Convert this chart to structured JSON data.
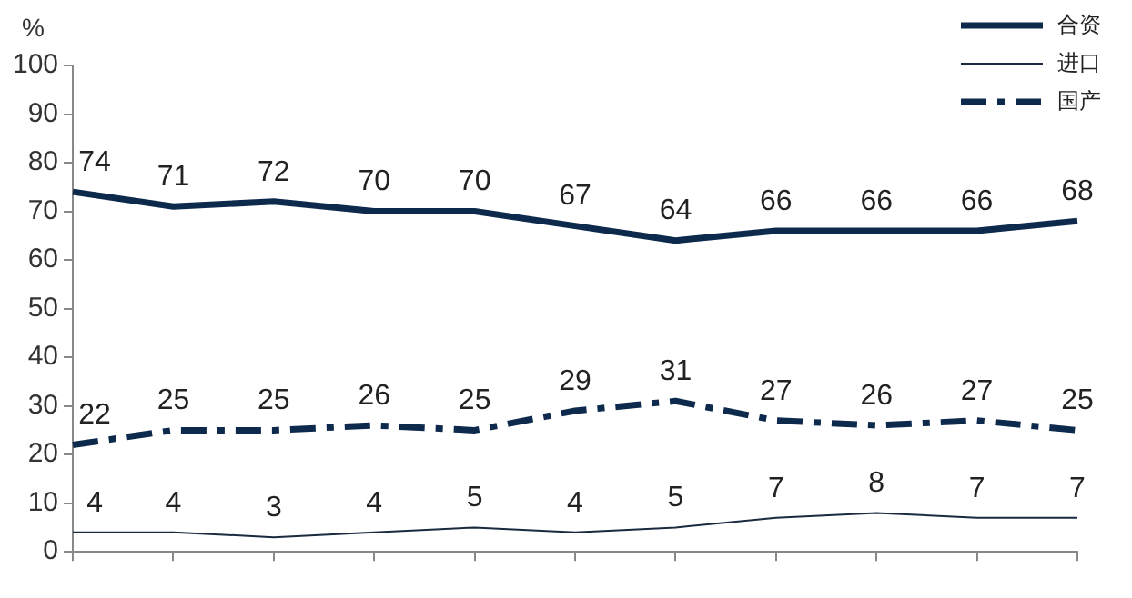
{
  "chart_data": {
    "type": "line",
    "ylabel": "%",
    "categories": [
      null,
      null,
      null,
      null,
      null,
      null,
      null,
      null,
      null,
      null,
      null
    ],
    "series": [
      {
        "name": "合资",
        "color": "#0d2a4d",
        "line_style": "solid",
        "values": [
          74,
          71,
          72,
          70,
          70,
          67,
          64,
          66,
          66,
          66,
          68
        ]
      },
      {
        "name": "进口",
        "color": "#1a2a40",
        "line_style": "solid",
        "values": [
          4,
          4,
          3,
          4,
          5,
          4,
          5,
          7,
          8,
          7,
          7
        ]
      },
      {
        "name": "国产",
        "color": "#0d2a4d",
        "line_style": "dashed",
        "values": [
          22,
          25,
          25,
          26,
          25,
          29,
          31,
          27,
          26,
          27,
          25
        ]
      }
    ],
    "ylim": [
      0,
      100
    ],
    "yticks": [
      0,
      10,
      20,
      30,
      40,
      50,
      60,
      70,
      80,
      90,
      100
    ],
    "grid": false,
    "legend": "top right",
    "marker": "none",
    "data_labels": true
  }
}
